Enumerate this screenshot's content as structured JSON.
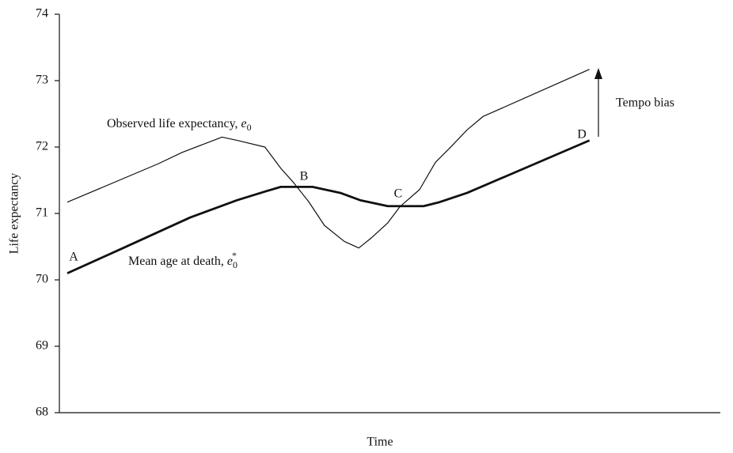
{
  "chart_data": {
    "type": "line",
    "xlabel": "Time",
    "ylabel": "Life expectancy",
    "xlim": [
      0,
      100
    ],
    "ylim": [
      68,
      74
    ],
    "yticks": [
      68,
      69,
      70,
      71,
      72,
      73,
      74
    ],
    "grid": false,
    "series": [
      {
        "color": "#111111",
        "width": 1.2,
        "x": [
          1.2,
          15.0,
          18.6,
          24.6,
          26.9,
          31.1,
          33.5,
          35.3,
          37.7,
          40.1,
          43.1,
          45.3,
          47.3,
          49.7,
          51.5,
          54.5,
          56.9,
          59.3,
          61.7,
          64.1,
          80.2
        ],
        "values": [
          71.17,
          71.75,
          71.92,
          72.15,
          72.1,
          72.0,
          71.68,
          71.48,
          71.18,
          70.82,
          70.58,
          70.48,
          70.64,
          70.86,
          71.1,
          71.36,
          71.77,
          72.01,
          72.26,
          72.46,
          73.17
        ]
      },
      {
        "color": "#111111",
        "width": 2.8,
        "x": [
          1.2,
          9.0,
          19.8,
          26.9,
          31.1,
          33.5,
          38.3,
          42.5,
          45.5,
          49.7,
          55.1,
          57.5,
          61.7,
          80.2
        ],
        "values": [
          70.1,
          70.45,
          70.94,
          71.2,
          71.33,
          71.4,
          71.4,
          71.31,
          71.2,
          71.11,
          71.11,
          71.17,
          71.31,
          72.1
        ]
      }
    ],
    "annotations": {
      "observed": {
        "text": "Observed life expectancy, ",
        "symbol": "e",
        "sub": "0"
      },
      "mean_age": {
        "text": "Mean age at death, ",
        "symbol": "e",
        "sub": "0",
        "sup": "*"
      },
      "tempo": "Tempo bias",
      "points": [
        "A",
        "B",
        "C",
        "D"
      ]
    }
  }
}
